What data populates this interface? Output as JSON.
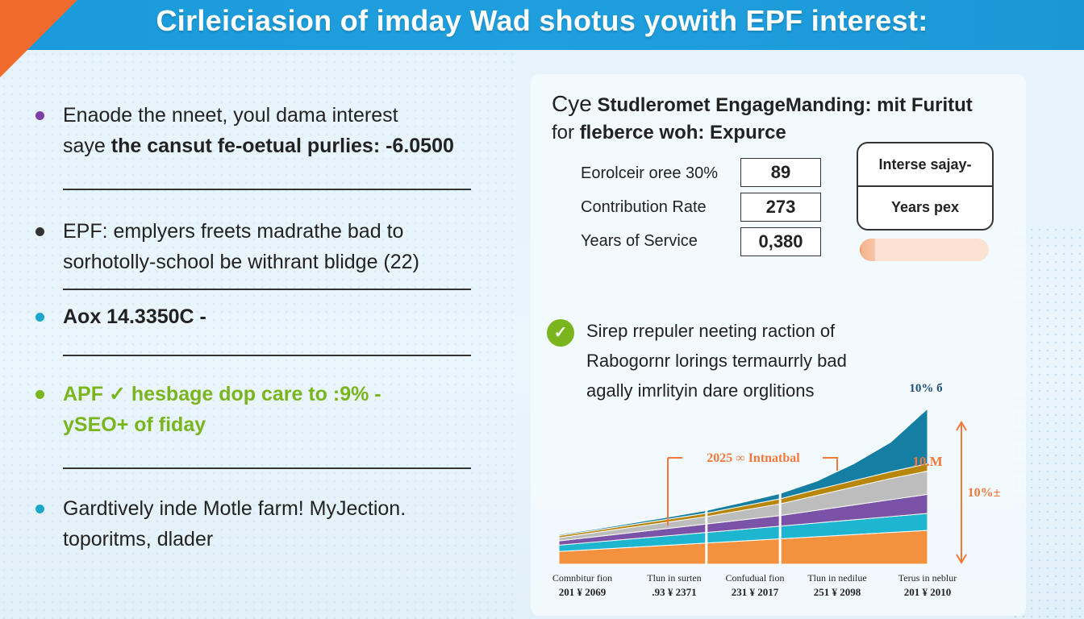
{
  "header": {
    "title": "Cirleiciasion of imday Wad shotus yowith EPF interest:"
  },
  "colors": {
    "header": "#1a9ad9",
    "corner": "#f26b2e",
    "accent_green": "#7ab51d",
    "accent_orange": "#f0783a"
  },
  "bullets": [
    {
      "lines": [
        "Enaode the nneet, youl dama interest",
        "saye the cansut fe-oetual purlies: -6.0500"
      ],
      "color": "#7b3fa8",
      "text_color": "#333333",
      "bold": false
    },
    {
      "lines": [
        "EPF: emplyers freets madrathe bad to",
        "sorhotolly-school be withrant blidge (22)"
      ],
      "color": "#333333",
      "text_color": "#333333",
      "bold": false
    },
    {
      "lines": [
        "Aox 14.3350C -"
      ],
      "color": "#1ba7cc",
      "text_color": "#333333",
      "bold": true
    },
    {
      "lines": [
        "APF ✓ hesbage dop care to :9% -",
        "ySEO+ of fiday"
      ],
      "color": "#7ab51d",
      "text_color": "#7ab51d",
      "bold": true
    },
    {
      "lines": [
        "Gardtively inde Motle farm! MyJection.",
        "toporitms, dlader"
      ],
      "color": "#1ba7cc",
      "text_color": "#333333",
      "bold": false
    }
  ],
  "panel": {
    "title_lead": "Cye",
    "title_1": "Studleromet EngageManding: mit Furitut",
    "title_lead2": "for",
    "title_2": "fleberce woh: Expurce",
    "fields": [
      {
        "label": "Eorolceir oree 30%",
        "value": "89"
      },
      {
        "label": "Contribution Rate",
        "value": "273"
      },
      {
        "label": "Years of Service",
        "value": "0,380"
      }
    ],
    "card": {
      "row1": "Interse sajay-",
      "row2": "Years pex"
    },
    "progress": 0.12,
    "check_icon": "check-circle-icon",
    "note_lines": [
      "Sirep rrepuler neeting raction of",
      "Rabogornr lorings termaurrly bad",
      "agally imrlityin dare orglitions"
    ]
  },
  "chart_data": {
    "type": "area",
    "title": "",
    "annotations": {
      "top": "10% б",
      "callout": "2025 ∞ Intnatbal",
      "right_mid": "10%±",
      "right_top": "10.M"
    },
    "x_labels": [
      {
        "line1": "Comnbitur fion",
        "line2": "201 ¥ 2069"
      },
      {
        "line1": "Tlun in surten",
        "line2": ".93 ¥ 2371"
      },
      {
        "line1": "Confudual fion",
        "line2": "231 ¥ 2017"
      },
      {
        "line1": "Tlun in nedilue",
        "line2": "251 ¥ 2098"
      },
      {
        "line1": "Terus in neblur",
        "line2": "201 ¥ 2010"
      }
    ],
    "x": [
      0,
      1,
      2,
      3,
      4,
      5,
      6,
      7,
      8,
      9,
      10
    ],
    "series": [
      {
        "color": "#f4913e",
        "values": [
          6,
          7,
          8,
          9,
          10,
          11,
          12,
          13,
          14,
          15,
          16
        ]
      },
      {
        "color": "#1db5cf",
        "values": [
          3,
          3.5,
          4,
          4.5,
          5,
          5.5,
          6,
          6.5,
          7,
          7.5,
          8
        ]
      },
      {
        "color": "#7a52a8",
        "values": [
          2,
          2.5,
          3,
          3.5,
          4,
          4.5,
          5,
          6,
          7,
          8,
          9
        ]
      },
      {
        "color": "#bdbdbd",
        "values": [
          1.5,
          2,
          2.5,
          3,
          3.5,
          4.5,
          5.5,
          7,
          8.5,
          10,
          11
        ]
      },
      {
        "color": "#b8860b",
        "values": [
          1,
          1,
          1.2,
          1.4,
          1.6,
          2,
          2.4,
          2.8,
          3,
          3.2,
          3.5
        ]
      },
      {
        "color": "#157fa3",
        "values": [
          0.5,
          0.6,
          0.8,
          1,
          1.3,
          1.8,
          2.5,
          4,
          8,
          14,
          26
        ]
      }
    ],
    "ylim": [
      0,
      80
    ]
  }
}
